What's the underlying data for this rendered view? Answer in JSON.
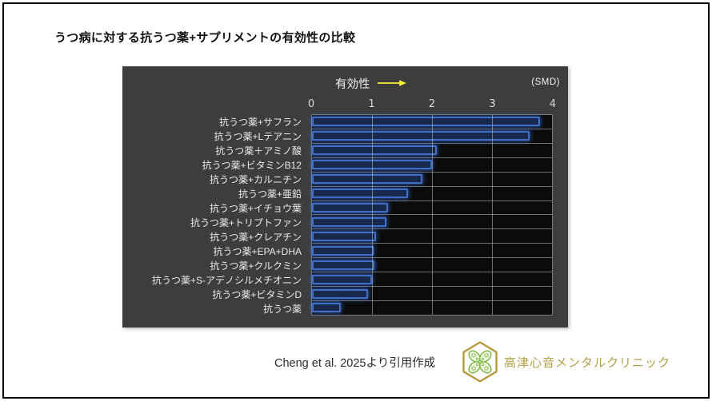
{
  "title": "うつ病に対する抗うつ薬+サプリメントの有効性の比較",
  "chart": {
    "axis_title": "有効性",
    "unit_label": "(SMD)",
    "ticks": [
      "0",
      "1",
      "2",
      "3",
      "4"
    ]
  },
  "chart_data": {
    "type": "bar",
    "orientation": "horizontal",
    "title": "うつ病に対する抗うつ薬+サプリメントの有効性の比較",
    "xlabel": "有効性 (SMD)",
    "xlim": [
      0,
      4
    ],
    "grid": true,
    "legend": false,
    "categories": [
      "抗うつ薬+サフラン",
      "抗うつ薬+Lテアニン",
      "抗うつ薬＋アミノ酸",
      "抗うつ薬+ビタミンB12",
      "抗うつ薬+カルニチン",
      "抗うつ薬+亜鉛",
      "抗うつ薬+イチョウ葉",
      "抗うつ薬+トリプトファン",
      "抗うつ薬+クレアチン",
      "抗うつ薬+EPA+DHA",
      "抗うつ薬+クルクミン",
      "抗うつ薬+S-アデノシルメチオニン",
      "抗うつ薬+ビタミンD",
      "抗うつ薬"
    ],
    "values": [
      3.8,
      3.62,
      2.08,
      2.0,
      1.84,
      1.6,
      1.26,
      1.24,
      1.07,
      1.03,
      1.04,
      1.0,
      0.93,
      0.48
    ]
  },
  "footer": {
    "citation": "Cheng et al. 2025より引用作成",
    "clinic_name": "高津心音メンタルクリニック",
    "logo_icon": "clover-hexagon-logo"
  },
  "colors": {
    "bar_border": "#3f6fca",
    "bar_fill": "#18294e",
    "panel_bg": "#3d3d3d",
    "plot_bg": "#0b0b0b",
    "gridline": "#c3c3c3",
    "arrow_yellow": "#f5ef32",
    "clinic_gold": "#b3a04a"
  }
}
